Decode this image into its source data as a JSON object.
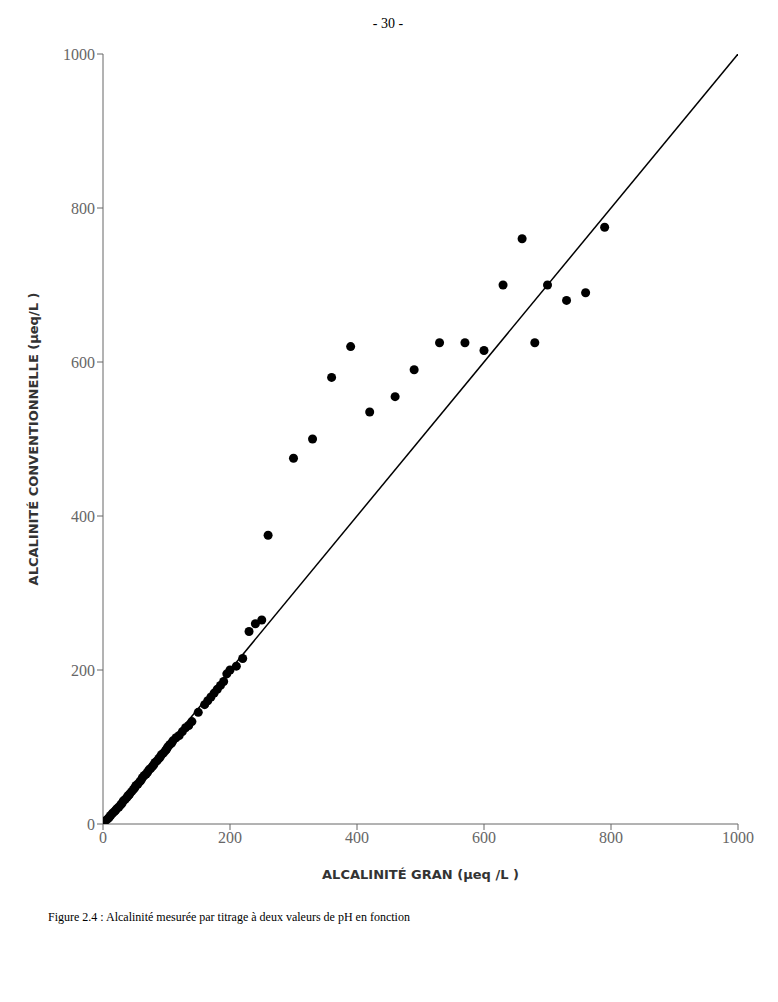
{
  "chart_data": {
    "type": "scatter",
    "title": "- 30 -",
    "xlabel": "ALCALINITÉ  GRAN  (μeq /L )",
    "ylabel": "ALCALINITÉ CONVENTIONNELLE (μeq/L )",
    "caption": "Figure 2.4 : Alcalinité mesurée par titrage à deux valeurs de pH en fonction",
    "xlim": [
      0,
      1000
    ],
    "ylim": [
      0,
      1000
    ],
    "xticks": [
      0,
      200,
      400,
      600,
      800,
      1000
    ],
    "yticks": [
      0,
      200,
      400,
      600,
      800,
      1000
    ],
    "grid": false,
    "series": [
      {
        "type": "line",
        "color": "#000000",
        "x": [
          0,
          1000
        ],
        "values": [
          0,
          1000
        ]
      },
      {
        "type": "scatter",
        "color": "#000000",
        "x": [
          5,
          8,
          10,
          12,
          15,
          18,
          20,
          22,
          25,
          28,
          30,
          32,
          35,
          38,
          40,
          42,
          45,
          48,
          50,
          52,
          55,
          58,
          60,
          62,
          65,
          68,
          70,
          72,
          75,
          78,
          80,
          82,
          85,
          88,
          90,
          92,
          95,
          98,
          100,
          102,
          105,
          108,
          110,
          115,
          120,
          125,
          130,
          135,
          140,
          150,
          160,
          165,
          170,
          175,
          180,
          185,
          190,
          195,
          200,
          210,
          220,
          230,
          240,
          250,
          260,
          300,
          330,
          360,
          390,
          420,
          460,
          490,
          530,
          570,
          600,
          630,
          660,
          680,
          700,
          730,
          760,
          790
        ],
        "values": [
          5,
          7,
          9,
          11,
          14,
          16,
          18,
          20,
          22,
          25,
          27,
          30,
          32,
          35,
          37,
          39,
          42,
          45,
          47,
          50,
          52,
          55,
          57,
          60,
          63,
          65,
          67,
          70,
          72,
          75,
          77,
          80,
          82,
          85,
          87,
          90,
          92,
          95,
          97,
          100,
          103,
          105,
          108,
          112,
          115,
          120,
          125,
          128,
          133,
          145,
          155,
          160,
          165,
          170,
          175,
          180,
          185,
          195,
          200,
          205,
          215,
          250,
          260,
          265,
          375,
          475,
          500,
          580,
          620,
          535,
          555,
          590,
          625,
          625,
          615,
          700,
          760,
          625,
          700,
          680,
          690,
          775
        ]
      }
    ]
  }
}
